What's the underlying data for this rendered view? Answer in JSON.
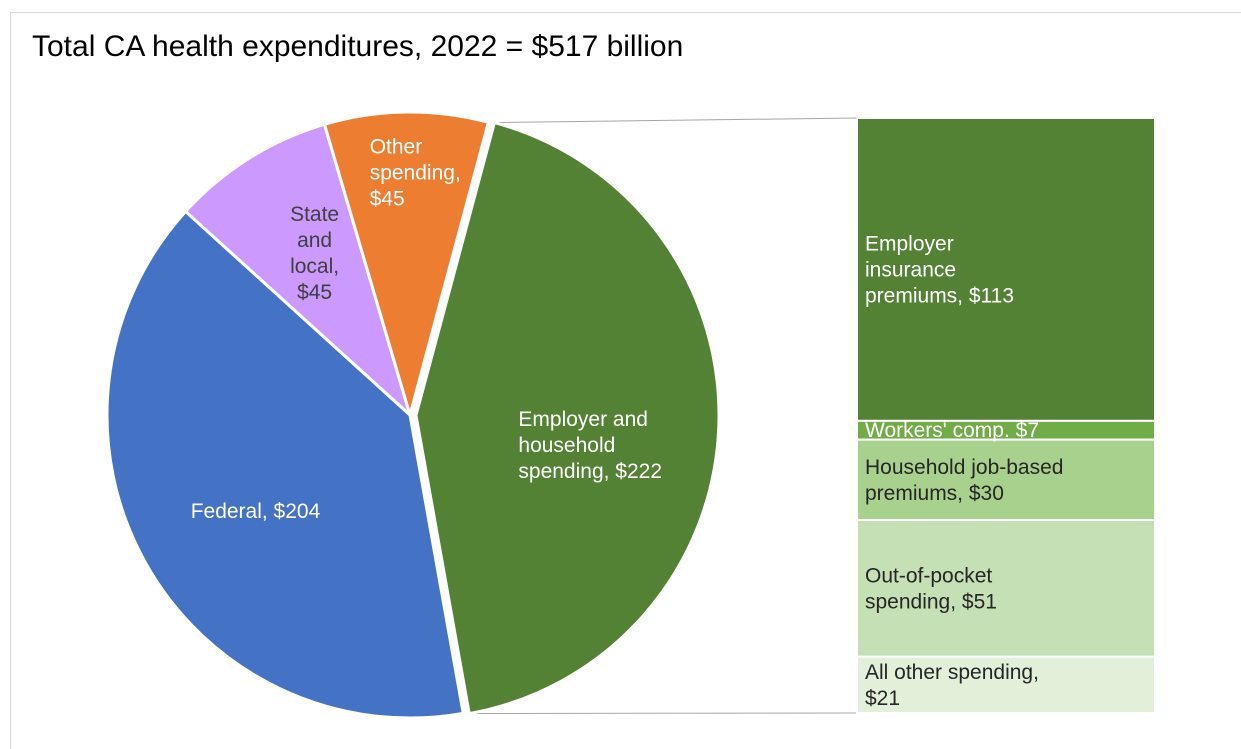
{
  "chart_data": {
    "type": "bar-of-pie",
    "title": "Total CA health expenditures, 2022 = $517 billion",
    "pie": {
      "slices": [
        {
          "name": "Employer and household spending",
          "value": 222,
          "label": [
            "Employer and",
            "household",
            "spending,  $222"
          ],
          "color": "#548235",
          "label_color": "#ffffff"
        },
        {
          "name": "Federal",
          "value": 204,
          "label": [
            "Federal,  $204"
          ],
          "color": "#4472c4",
          "label_color": "#ffffff"
        },
        {
          "name": "State and local",
          "value": 45,
          "label": [
            "State",
            "and",
            "local,",
            "$45"
          ],
          "color": "#cc99ff",
          "label_color": "#404040"
        },
        {
          "name": "Other spending",
          "value": 45,
          "label": [
            "Other",
            "spending,",
            "$45"
          ],
          "color": "#ed7d31",
          "label_color": "#ffffff"
        }
      ]
    },
    "breakdown": {
      "of": "Employer and household spending",
      "segments": [
        {
          "name": "Employer insurance premiums",
          "value": 113,
          "label": [
            "Employer",
            "insurance",
            "premiums,  $113"
          ],
          "color": "#548235",
          "label_color": "#ffffff"
        },
        {
          "name": "Workers' comp.",
          "value": 7,
          "label": [
            "Workers' comp.  $7"
          ],
          "color": "#70ad47",
          "label_color": "#ffffff"
        },
        {
          "name": "Household job-based premiums",
          "value": 30,
          "label": [
            "Household job-based",
            "premiums,  $30"
          ],
          "color": "#a9d18e",
          "label_color": "#262626"
        },
        {
          "name": "Out-of-pocket spending",
          "value": 51,
          "label": [
            "Out-of-pocket",
            "spending,  $51"
          ],
          "color": "#c5e0b4",
          "label_color": "#262626"
        },
        {
          "name": "All other spending",
          "value": 21,
          "label": [
            "All other spending,",
            "$21"
          ],
          "color": "#e2f0d9",
          "label_color": "#262626"
        }
      ]
    }
  }
}
